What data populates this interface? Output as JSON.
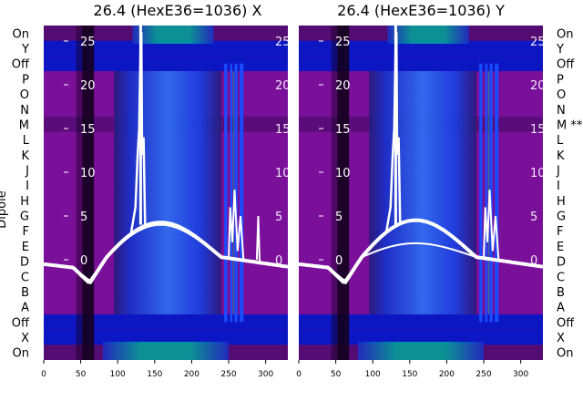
{
  "chart_data": [
    {
      "type": "heatmap",
      "title": "26.4 (HexE36=1036) X",
      "ylabel": "Dipole",
      "xlim": [
        0,
        330
      ],
      "x_ticks": [
        0,
        50,
        100,
        150,
        200,
        250,
        300
      ],
      "y_ticks": [
        0,
        5,
        10,
        15,
        20,
        25
      ],
      "rows": [
        "On",
        "Y",
        "Off",
        "P",
        "O",
        "N",
        "M",
        "L",
        "K",
        "J",
        "I",
        "H",
        "G",
        "F",
        "E",
        "D",
        "C",
        "B",
        "A",
        "Off",
        "X",
        "On"
      ],
      "trace_peaks": [
        25,
        4.5,
        4.2
      ]
    },
    {
      "type": "heatmap",
      "title": "26.4 (HexE36=1036) Y",
      "ylabel": "",
      "xlim": [
        0,
        330
      ],
      "x_ticks": [
        0,
        50,
        100,
        150,
        200,
        250,
        300
      ],
      "y_ticks": [
        0,
        5,
        10,
        15,
        20,
        25
      ],
      "rows": [
        "On",
        "Y",
        "Off",
        "P",
        "O",
        "N",
        "M **",
        "L",
        "K",
        "J",
        "I",
        "H",
        "G",
        "F",
        "E",
        "D",
        "C",
        "B",
        "A",
        "Off",
        "X",
        "On"
      ],
      "trace_peaks": [
        25,
        4.8,
        1.8
      ]
    }
  ],
  "colors": {
    "background_band": "#7a0f9a",
    "dark_column": "#14001e",
    "bright_blue": "#1a4cff",
    "teal": "#00a79a",
    "trace": "#ffffff"
  }
}
